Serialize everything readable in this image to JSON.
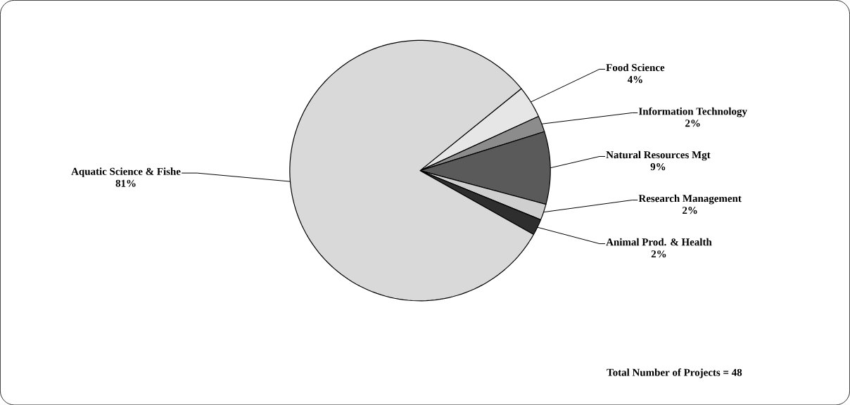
{
  "chart_data": {
    "type": "pie",
    "categories": [
      "Food Science",
      "Information Technology",
      "Natural Resources Mgt",
      "Research Management",
      "Animal Prod. & Health",
      "Aquatic Science & Fishe"
    ],
    "values": [
      4,
      2,
      9,
      2,
      2,
      81
    ],
    "value_labels": [
      "4%",
      "2%",
      "9%",
      "2%",
      "2%",
      "81%"
    ],
    "colors": [
      "#e6e6e6",
      "#8c8c8c",
      "#5a5a5a",
      "#cfcfcf",
      "#2e2e2e",
      "#d9d9d9"
    ],
    "annotations": [
      "Total Number of Projects = 48"
    ]
  }
}
